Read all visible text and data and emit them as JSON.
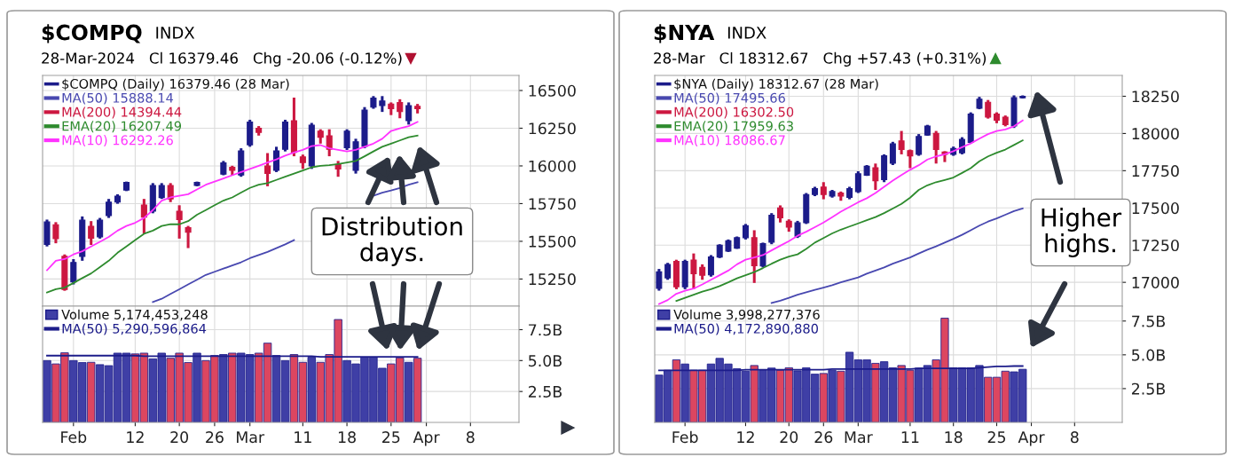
{
  "chart_data": [
    {
      "type": "candlestick",
      "title": "$COMPQ",
      "subtitle": "28-Mar-2024   Cl 16379.46   Chg -20.06 (-0.12%)",
      "annotations": [
        "INDX",
        "Distribution\ndays."
      ],
      "categories": [
        null,
        null,
        null,
        null,
        null,
        null,
        null,
        null,
        null,
        null,
        null,
        null,
        null,
        null,
        null,
        null,
        null,
        null,
        null,
        null,
        null,
        null,
        null,
        null,
        null,
        null,
        null,
        null,
        null,
        null,
        null,
        null,
        null,
        null,
        null,
        null,
        null,
        null,
        null,
        null,
        null,
        null,
        null,
        null,
        null,
        null,
        null,
        null,
        null,
        null,
        null,
        null,
        null,
        null
      ],
      "series": [
        {
          "name": "$COMPQ (Daily) 16379.46 (28 Mar)",
          "ohlc": [
            [
              15480,
              15644,
              15466,
              15628
            ],
            [
              15610,
              15627,
              15487,
              15518
            ],
            [
              15400,
              15413,
              15172,
              15180
            ],
            [
              15230,
              15382,
              15214,
              15360
            ],
            [
              15400,
              15665,
              15371,
              15640
            ],
            [
              15600,
              15634,
              15476,
              15520
            ],
            [
              15530,
              15655,
              15518,
              15640
            ],
            [
              15670,
              15781,
              15655,
              15760
            ],
            [
              15760,
              15812,
              15749,
              15800
            ],
            [
              15840,
              15896,
              15833,
              15890
            ],
            null,
            [
              15740,
              15781,
              15550,
              15660
            ],
            [
              15700,
              15886,
              15686,
              15870
            ],
            [
              15790,
              15886,
              15781,
              15870
            ],
            [
              15870,
              15886,
              15760,
              15781
            ],
            [
              15700,
              15739,
              15518,
              15644
            ],
            [
              15590,
              15602,
              15455,
              15560
            ],
            [
              15870,
              15896,
              15865,
              15890
            ],
            null,
            null,
            [
              15945,
              16033,
              15938,
              16020
            ],
            [
              15990,
              16001,
              15938,
              15970
            ],
            [
              15940,
              16117,
              15928,
              16100
            ],
            [
              16140,
              16306,
              16127,
              16290
            ],
            [
              16250,
              16264,
              16201,
              16222
            ],
            [
              16000,
              16085,
              15865,
              15950
            ],
            [
              15970,
              16127,
              15959,
              16100
            ],
            [
              16110,
              16306,
              16096,
              16290
            ],
            [
              16300,
              16453,
              16064,
              16090
            ],
            [
              16060,
              16075,
              15980,
              16022
            ],
            [
              16000,
              16285,
              15980,
              16270
            ],
            [
              16230,
              16243,
              16148,
              16190
            ],
            [
              16200,
              16243,
              16064,
              16110
            ],
            [
              16010,
              16033,
              15928,
              15980
            ],
            [
              16120,
              16243,
              16106,
              16230
            ],
            [
              15970,
              16180,
              15949,
              16160
            ],
            [
              16130,
              16390,
              16117,
              16370
            ],
            [
              16390,
              16463,
              16379,
              16450
            ],
            [
              16400,
              16463,
              16358,
              16430
            ],
            [
              16410,
              16421,
              16337,
              16380
            ],
            [
              16420,
              16442,
              16316,
              16360
            ],
            [
              16300,
              16421,
              16274,
              16400
            ],
            [
              16395,
              16411,
              16348,
              16380
            ],
            null,
            null,
            null,
            null,
            null,
            null,
            null,
            null,
            null,
            null,
            null
          ],
          "colors": [
            "#1c1c8a",
            "#cc1740",
            "#cc1740",
            "#1c1c8a",
            "#1c1c8a",
            "#cc1740",
            "#1c1c8a",
            "#1c1c8a",
            "#1c1c8a",
            "#1c1c8a",
            null,
            "#cc1740",
            "#1c1c8a",
            "#1c1c8a",
            "#cc1740",
            "#cc1740",
            "#cc1740",
            "#1c1c8a",
            null,
            null,
            "#1c1c8a",
            "#cc1740",
            "#1c1c8a",
            "#1c1c8a",
            "#cc1740",
            "#cc1740",
            "#1c1c8a",
            "#1c1c8a",
            "#cc1740",
            "#cc1740",
            "#1c1c8a",
            "#cc1740",
            "#cc1740",
            "#cc1740",
            "#1c1c8a",
            "#1c1c8a",
            "#1c1c8a",
            "#1c1c8a",
            "#1c1c8a",
            "#cc1740",
            "#cc1740",
            "#1c1c8a",
            "#cc1740",
            null,
            null,
            null,
            null,
            null,
            null,
            null,
            null,
            null,
            null,
            null
          ]
        },
        {
          "type": "line",
          "name": "MA(50) 15888.14",
          "color": "#4848b0",
          "values": [
            null,
            null,
            null,
            null,
            null,
            null,
            null,
            null,
            null,
            null,
            null,
            null,
            15098,
            15119,
            15151,
            15182,
            15214,
            15245,
            15277,
            15298,
            15319,
            15340,
            15361,
            15388,
            15409,
            15430,
            15455,
            15480,
            15508,
            null,
            null,
            null,
            null,
            null,
            null,
            null,
            null,
            15802,
            15823,
            15837,
            15854,
            15875,
            15892,
            null,
            null,
            null,
            null,
            null,
            null,
            null,
            null,
            null,
            null,
            null
          ]
        },
        {
          "type": "line",
          "name": "MA(200) 14394.44",
          "color": "#cc1740",
          "values": [
            null,
            null,
            null,
            null,
            null,
            null,
            null,
            null,
            null,
            null,
            null,
            null,
            null,
            null,
            null,
            null,
            null,
            null,
            null,
            null,
            null,
            null,
            null,
            null,
            null,
            null,
            null,
            null,
            null,
            null,
            null,
            null,
            null,
            null,
            null,
            null,
            null,
            null,
            null,
            null,
            null,
            null,
            null,
            null,
            null,
            null,
            null,
            null,
            null,
            null,
            null,
            null,
            null,
            null
          ]
        },
        {
          "type": "line",
          "name": "EMA(20) 16207.49",
          "color": "#2e8b2e",
          "values": [
            15161,
            15182,
            15193,
            15224,
            15256,
            15287,
            15329,
            15371,
            15424,
            15466,
            15508,
            15550,
            15571,
            15602,
            15613,
            15613,
            15634,
            15676,
            15707,
            15739,
            15770,
            15791,
            15823,
            15854,
            15875,
            15886,
            15907,
            15928,
            15949,
            15970,
            15991,
            16001,
            16005,
            16012,
            16022,
            16033,
            16064,
            16096,
            16127,
            16148,
            16169,
            16190,
            16201,
            null,
            null,
            null,
            null,
            null,
            null,
            null,
            null,
            null,
            null,
            null
          ]
        },
        {
          "type": "line",
          "name": "MA(10) 16292.26",
          "color": "#ff33ff",
          "values": [
            15308,
            15371,
            15382,
            15413,
            15434,
            15466,
            15497,
            15529,
            15571,
            15602,
            15623,
            15655,
            15707,
            15770,
            15791,
            15802,
            15812,
            15844,
            15875,
            15896,
            15917,
            15938,
            15959,
            15980,
            16001,
            16022,
            16043,
            16068,
            16089,
            16106,
            16131,
            16138,
            16117,
            16106,
            16096,
            16106,
            16127,
            16148,
            16180,
            16232,
            16249,
            16264,
            16292,
            null,
            null,
            null,
            null,
            null,
            null,
            null,
            null,
            null,
            null,
            null
          ]
        }
      ],
      "ylim": [
        15070,
        16600
      ],
      "yticks": [
        15250,
        15500,
        15750,
        16000,
        16250,
        16500
      ],
      "grid": true,
      "legend": "top left",
      "tick_labels": "y"
    },
    {
      "type": "bar",
      "categories": [
        null,
        null,
        null,
        "Feb",
        null,
        null,
        null,
        null,
        null,
        null,
        "12",
        null,
        null,
        null,
        null,
        "20",
        null,
        null,
        null,
        "26",
        null,
        null,
        null,
        "Mar",
        null,
        null,
        null,
        null,
        null,
        "11",
        null,
        null,
        null,
        null,
        "18",
        null,
        null,
        null,
        null,
        "25",
        null,
        null,
        null,
        "Apr",
        null,
        null,
        null,
        null,
        "8",
        null,
        null,
        null,
        null,
        null
      ],
      "series": [
        {
          "name": "Volume 5,174,453,248",
          "values": [
            5.0,
            4.73,
            5.63,
            5.0,
            4.84,
            4.86,
            4.67,
            4.59,
            5.6,
            5.6,
            5.54,
            5.6,
            5.14,
            5.6,
            5.19,
            5.6,
            4.84,
            5.6,
            5.0,
            5.41,
            5.49,
            5.6,
            5.6,
            5.49,
            5.6,
            6.41,
            5.41,
            5.0,
            5.49,
            4.86,
            5.27,
            4.86,
            5.49,
            8.32,
            5.0,
            4.73,
            5.27,
            5.27,
            4.38,
            4.73,
            5.22,
            4.86,
            5.19,
            null,
            null,
            null,
            null,
            null,
            null,
            null,
            null,
            null,
            null,
            null
          ],
          "colors": [
            "#3f3fa6",
            "#dc4660",
            "#dc4660",
            "#3f3fa6",
            "#3f3fa6",
            "#dc4660",
            "#3f3fa6",
            "#3f3fa6",
            "#3f3fa6",
            "#3f3fa6",
            "#dc4660",
            "#dc4660",
            "#3f3fa6",
            "#3f3fa6",
            "#dc4660",
            "#dc4660",
            "#dc4660",
            "#3f3fa6",
            "#dc4660",
            "#dc4660",
            "#3f3fa6",
            "#dc4660",
            "#3f3fa6",
            "#3f3fa6",
            "#dc4660",
            "#dc4660",
            "#3f3fa6",
            "#3f3fa6",
            "#dc4660",
            "#dc4660",
            "#3f3fa6",
            "#dc4660",
            "#dc4660",
            "#dc4660",
            "#3f3fa6",
            "#3f3fa6",
            "#3f3fa6",
            "#3f3fa6",
            "#3f3fa6",
            "#dc4660",
            "#dc4660",
            "#3f3fa6",
            "#dc4660",
            null,
            null,
            null,
            null,
            null,
            null,
            null,
            null,
            null,
            null,
            null
          ]
        },
        {
          "type": "line",
          "name": "MA(50) 5,290,596,864",
          "color": "#1c1c8a",
          "values": [
            5.4,
            5.4,
            5.4,
            5.4,
            5.4,
            5.4,
            5.4,
            5.4,
            5.4,
            5.4,
            5.4,
            5.35,
            5.35,
            5.35,
            5.35,
            5.35,
            5.35,
            5.35,
            5.35,
            5.35,
            5.35,
            5.35,
            5.35,
            5.35,
            5.35,
            5.35,
            5.35,
            5.35,
            5.35,
            5.35,
            5.35,
            5.3,
            5.3,
            5.3,
            5.3,
            5.3,
            5.3,
            5.3,
            5.3,
            5.3,
            5.3,
            5.3,
            5.3,
            null,
            null,
            null,
            null,
            null,
            null,
            null,
            null,
            null,
            null,
            null
          ]
        }
      ],
      "ylim": [
        0,
        9.4
      ],
      "yticks": [
        {
          "value": 2.5,
          "label": "2.5B"
        },
        {
          "value": 5,
          "label": "5.0B"
        },
        {
          "value": 7.5,
          "label": "7.5B"
        }
      ],
      "grid": true,
      "legend": "top left"
    },
    {
      "type": "candlestick",
      "title": "$NYA",
      "subtitle": "28-Mar   Cl 18312.67   Chg +57.43 (+0.31%)",
      "annotations": [
        "INDX",
        "Higher\nhighs."
      ],
      "categories": [
        null,
        null,
        null,
        null,
        null,
        null,
        null,
        null,
        null,
        null,
        null,
        null,
        null,
        null,
        null,
        null,
        null,
        null,
        null,
        null,
        null,
        null,
        null,
        null,
        null,
        null,
        null,
        null,
        null,
        null,
        null,
        null,
        null,
        null,
        null,
        null,
        null,
        null,
        null,
        null,
        null,
        null,
        null,
        null,
        null,
        null,
        null,
        null,
        null,
        null,
        null,
        null,
        null,
        null
      ],
      "series": [
        {
          "name": "$NYA (Daily) 18312.67 (28 Mar)",
          "ohlc": [
            [
              16960,
              17090,
              16944,
              17070
            ],
            [
              17030,
              17131,
              17017,
              17120
            ],
            [
              17140,
              17152,
              16954,
              16970
            ],
            [
              16970,
              17152,
              16954,
              17140
            ],
            [
              17150,
              17194,
              16954,
              17058
            ],
            [
              17100,
              17121,
              17017,
              17048
            ],
            [
              17050,
              17183,
              17038,
              17170
            ],
            [
              17170,
              17256,
              17163,
              17250
            ],
            [
              17210,
              17288,
              17204,
              17280
            ],
            [
              17230,
              17308,
              17225,
              17300
            ],
            [
              17300,
              17392,
              17288,
              17380
            ],
            [
              17300,
              17350,
              16996,
              17111
            ],
            [
              17110,
              17267,
              17100,
              17260
            ],
            [
              17270,
              17465,
              17256,
              17450
            ],
            [
              17500,
              17517,
              17402,
              17433
            ],
            [
              17410,
              17423,
              17340,
              17371
            ],
            [
              17310,
              17413,
              17298,
              17400
            ],
            [
              17400,
              17600,
              17392,
              17590
            ],
            [
              17590,
              17642,
              17579,
              17630
            ],
            [
              17640,
              17673,
              17558,
              17590
            ],
            [
              17580,
              17621,
              17569,
              17610
            ],
            [
              17600,
              17610,
              17548,
              17579
            ],
            [
              17570,
              17642,
              17558,
              17630
            ],
            [
              17610,
              17746,
              17600,
              17730
            ],
            [
              17720,
              17788,
              17715,
              17780
            ],
            [
              17770,
              17798,
              17621,
              17683
            ],
            [
              17690,
              17860,
              17673,
              17850
            ],
            [
              17800,
              17944,
              17788,
              17930
            ],
            [
              17950,
              18017,
              17860,
              17892
            ],
            [
              17885,
              17892,
              17767,
              17850
            ],
            [
              17860,
              17996,
              17850,
              17980
            ],
            [
              17990,
              18058,
              17985,
              18050
            ],
            [
              18000,
              18017,
              17798,
              17892
            ],
            [
              17875,
              17881,
              17808,
              17860
            ],
            [
              17860,
              17912,
              17850,
              17900
            ],
            [
              17870,
              17975,
              17860,
              17960
            ],
            [
              17940,
              18142,
              17933,
              18130
            ],
            [
              18170,
              18246,
              18163,
              18230
            ],
            [
              18210,
              18225,
              18100,
              18110
            ],
            [
              18130,
              18142,
              18069,
              18090
            ],
            [
              18110,
              18121,
              18048,
              18060
            ],
            [
              18050,
              18256,
              18037,
              18240
            ],
            [
              18240,
              18256,
              18235,
              18250
            ],
            null,
            null,
            null,
            null,
            null,
            null,
            null,
            null,
            null,
            null,
            null
          ],
          "colors": [
            "#1c1c8a",
            "#1c1c8a",
            "#cc1740",
            "#1c1c8a",
            "#cc1740",
            "#cc1740",
            "#1c1c8a",
            "#1c1c8a",
            "#1c1c8a",
            "#1c1c8a",
            "#1c1c8a",
            "#cc1740",
            "#1c1c8a",
            "#1c1c8a",
            "#cc1740",
            "#cc1740",
            "#1c1c8a",
            "#1c1c8a",
            "#1c1c8a",
            "#cc1740",
            "#1c1c8a",
            "#cc1740",
            "#1c1c8a",
            "#1c1c8a",
            "#1c1c8a",
            "#cc1740",
            "#1c1c8a",
            "#1c1c8a",
            "#cc1740",
            "#cc1740",
            "#1c1c8a",
            "#1c1c8a",
            "#cc1740",
            "#cc1740",
            "#1c1c8a",
            "#1c1c8a",
            "#1c1c8a",
            "#1c1c8a",
            "#cc1740",
            "#cc1740",
            "#cc1740",
            "#1c1c8a",
            "#1c1c8a",
            null,
            null,
            null,
            null,
            null,
            null,
            null,
            null,
            null,
            null,
            null
          ]
        },
        {
          "type": "line",
          "name": "MA(50) 17495.66",
          "color": "#4848b0",
          "values": [
            null,
            null,
            null,
            null,
            null,
            null,
            null,
            null,
            null,
            null,
            null,
            null,
            null,
            16861,
            16877,
            16896,
            16917,
            16933,
            16950,
            16965,
            16981,
            17000,
            17017,
            17033,
            17058,
            17079,
            17100,
            17125,
            17146,
            17167,
            17194,
            17219,
            17242,
            17267,
            17292,
            17319,
            17350,
            17381,
            17408,
            17429,
            17454,
            17479,
            17496,
            null,
            null,
            null,
            null,
            null,
            null,
            null,
            null,
            null,
            null,
            null
          ]
        },
        {
          "type": "line",
          "name": "MA(200) 16302.50",
          "color": "#cc1740",
          "values": [
            null,
            null,
            null,
            null,
            null,
            null,
            null,
            null,
            null,
            null,
            null,
            null,
            null,
            null,
            null,
            null,
            null,
            null,
            null,
            null,
            null,
            null,
            null,
            null,
            null,
            null,
            null,
            null,
            null,
            null,
            null,
            null,
            null,
            null,
            null,
            null,
            null,
            null,
            null,
            null,
            null,
            null,
            null,
            null,
            null,
            null,
            null,
            null,
            null,
            null,
            null,
            null,
            null,
            null
          ]
        },
        {
          "type": "line",
          "name": "EMA(20) 17959.63",
          "color": "#2e8b2e",
          "values": [
            null,
            null,
            16875,
            16896,
            16917,
            16938,
            16954,
            16975,
            17000,
            17027,
            17048,
            17069,
            17096,
            17125,
            17152,
            17173,
            17188,
            17225,
            17267,
            17298,
            17329,
            17354,
            17375,
            17396,
            17417,
            17438,
            17465,
            17496,
            17527,
            17569,
            17621,
            17652,
            17673,
            17688,
            17704,
            17735,
            17767,
            17813,
            17846,
            17871,
            17892,
            17923,
            17954,
            null,
            null,
            null,
            null,
            null,
            null,
            null,
            null,
            null,
            null,
            null
          ]
        },
        {
          "type": "line",
          "name": "MA(10) 18086.67",
          "color": "#ff33ff",
          "values": [
            16854,
            16881,
            16923,
            16944,
            16958,
            16986,
            17017,
            17048,
            17079,
            17121,
            17152,
            17167,
            17183,
            17215,
            17246,
            17277,
            17313,
            17340,
            17371,
            17402,
            17438,
            17475,
            17506,
            17538,
            17565,
            17600,
            17642,
            17683,
            17721,
            17756,
            17787,
            17825,
            17846,
            17860,
            17881,
            17908,
            17933,
            17965,
            17996,
            18017,
            18027,
            18048,
            18087,
            null,
            null,
            null,
            null,
            null,
            null,
            null,
            null,
            null,
            null,
            null
          ]
        }
      ],
      "ylim": [
        16840,
        18390
      ],
      "yticks": [
        17000,
        17250,
        17500,
        17750,
        18000,
        18250
      ],
      "grid": true,
      "legend": "top left",
      "tick_labels": "y"
    },
    {
      "type": "bar",
      "categories": [
        null,
        null,
        null,
        "Feb",
        null,
        null,
        null,
        null,
        null,
        null,
        "12",
        null,
        null,
        null,
        null,
        "20",
        null,
        null,
        null,
        "26",
        null,
        null,
        null,
        "Mar",
        null,
        null,
        null,
        null,
        null,
        "11",
        null,
        null,
        null,
        null,
        "18",
        null,
        null,
        null,
        null,
        "25",
        null,
        null,
        null,
        "Apr",
        null,
        null,
        null,
        null,
        "8",
        null,
        null,
        null,
        null,
        null
      ],
      "series": [
        {
          "name": "Volume 3,998,277,376",
          "values": [
            3.5,
            3.86,
            4.63,
            4.32,
            3.86,
            3.86,
            4.32,
            4.74,
            4.32,
            3.97,
            3.79,
            4.21,
            3.86,
            4.02,
            3.86,
            4.04,
            3.81,
            4.04,
            3.57,
            3.62,
            3.86,
            3.79,
            5.19,
            4.63,
            4.63,
            4.37,
            4.49,
            4.04,
            4.21,
            3.86,
            4.02,
            4.21,
            4.63,
            7.71,
            4.04,
            4.04,
            4.04,
            4.21,
            3.34,
            3.34,
            3.79,
            3.74,
            3.93,
            null,
            null,
            null,
            null,
            null,
            null,
            null,
            null,
            null,
            null,
            null
          ],
          "colors": [
            "#3f3fa6",
            "#3f3fa6",
            "#dc4660",
            "#3f3fa6",
            "#dc4660",
            "#dc4660",
            "#3f3fa6",
            "#3f3fa6",
            "#3f3fa6",
            "#3f3fa6",
            "#3f3fa6",
            "#dc4660",
            "#3f3fa6",
            "#3f3fa6",
            "#dc4660",
            "#dc4660",
            "#3f3fa6",
            "#3f3fa6",
            "#3f3fa6",
            "#dc4660",
            "#3f3fa6",
            "#dc4660",
            "#3f3fa6",
            "#3f3fa6",
            "#3f3fa6",
            "#dc4660",
            "#3f3fa6",
            "#3f3fa6",
            "#dc4660",
            "#dc4660",
            "#3f3fa6",
            "#3f3fa6",
            "#dc4660",
            "#dc4660",
            "#3f3fa6",
            "#3f3fa6",
            "#3f3fa6",
            "#3f3fa6",
            "#dc4660",
            "#dc4660",
            "#dc4660",
            "#3f3fa6",
            "#3f3fa6",
            null,
            null,
            null,
            null,
            null,
            null,
            null,
            null,
            null,
            null,
            null
          ]
        },
        {
          "type": "line",
          "name": "MA(50) 4,172,890,880",
          "color": "#1c1c8a",
          "values": [
            3.85,
            3.85,
            3.85,
            3.85,
            3.85,
            3.85,
            3.85,
            3.85,
            3.85,
            3.85,
            3.9,
            3.9,
            3.9,
            3.9,
            3.9,
            3.9,
            3.9,
            3.9,
            3.9,
            3.9,
            3.95,
            3.95,
            3.95,
            3.95,
            3.95,
            3.95,
            3.95,
            3.95,
            3.95,
            3.95,
            4.0,
            4.0,
            4.0,
            4.0,
            4.0,
            4.0,
            4.0,
            4.05,
            4.1,
            4.15,
            4.15,
            4.17,
            4.17,
            null,
            null,
            null,
            null,
            null,
            null,
            null,
            null,
            null,
            null,
            null
          ]
        }
      ],
      "ylim": [
        0,
        8.6
      ],
      "yticks": [
        {
          "value": 2.5,
          "label": "2.5B"
        },
        {
          "value": 5,
          "label": "5.0B"
        },
        {
          "value": 7.5,
          "label": "7.5B"
        }
      ],
      "grid": true,
      "legend": "top left"
    }
  ]
}
